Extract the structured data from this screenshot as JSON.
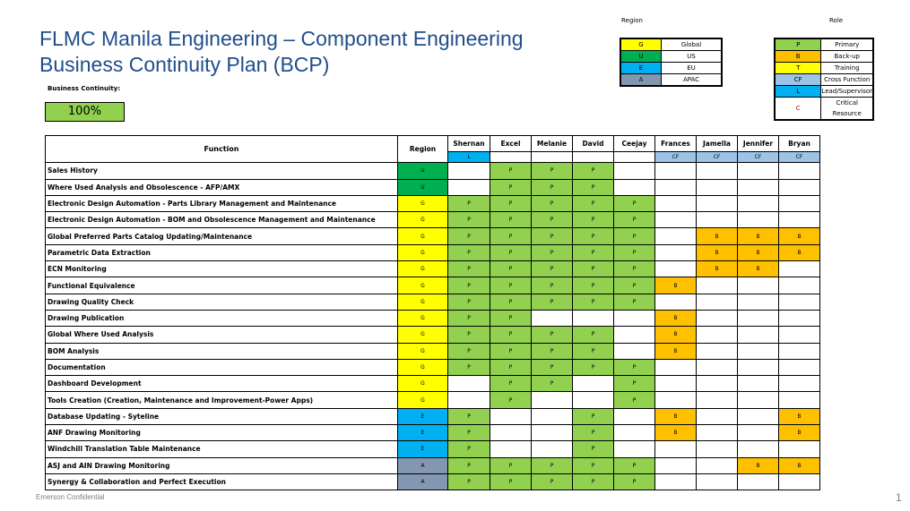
{
  "title": {
    "line1": "FLMC Manila Engineering – Component Engineering",
    "line2": "Business Continuity Plan (BCP)"
  },
  "business_continuity": {
    "label": "Business Continuity:",
    "value": "100%"
  },
  "region_legend": {
    "title": "Region",
    "items": [
      {
        "code": "G",
        "label": "Global",
        "color": "#ffff00"
      },
      {
        "code": "U",
        "label": "US",
        "color": "#00b050"
      },
      {
        "code": "E",
        "label": "EU",
        "color": "#00b0f0"
      },
      {
        "code": "A",
        "label": "APAC",
        "color": "#8497b0"
      }
    ]
  },
  "role_legend": {
    "title": "Role",
    "items": [
      {
        "code": "P",
        "label": "Primary",
        "color": "#92d050"
      },
      {
        "code": "B",
        "label": "Back-up",
        "color": "#ffc000"
      },
      {
        "code": "T",
        "label": "Training",
        "color": "#ffff00"
      },
      {
        "code": "CF",
        "label": "Cross Function",
        "color": "#9dc3e6"
      },
      {
        "code": "L",
        "label": "Lead/Supervisor",
        "color": "#00b0f0"
      },
      {
        "code": "C",
        "label": "Critical Resource",
        "color": "#ffffff"
      }
    ]
  },
  "table": {
    "function_header": "Function",
    "region_header": "Region",
    "people": [
      {
        "name": "Shernan",
        "tag": "L"
      },
      {
        "name": "Excel",
        "tag": ""
      },
      {
        "name": "Melanie",
        "tag": ""
      },
      {
        "name": "David",
        "tag": ""
      },
      {
        "name": "Ceejay",
        "tag": ""
      },
      {
        "name": "Frances",
        "tag": "CF"
      },
      {
        "name": "Jamella",
        "tag": "CF"
      },
      {
        "name": "Jennifer",
        "tag": "CF"
      },
      {
        "name": "Bryan",
        "tag": "CF"
      }
    ],
    "rows": [
      {
        "function": "Sales History",
        "region": "U",
        "roles": [
          "",
          "P",
          "P",
          "P",
          "",
          "",
          "",
          "",
          ""
        ]
      },
      {
        "function": "Where Used Analysis and Obsolescence - AFP/AMX",
        "region": "U",
        "roles": [
          "",
          "P",
          "P",
          "P",
          "",
          "",
          "",
          "",
          ""
        ]
      },
      {
        "function": "Electronic Design Automation  - Parts Library Management and Maintenance",
        "region": "G",
        "roles": [
          "P",
          "P",
          "P",
          "P",
          "P",
          "",
          "",
          "",
          ""
        ]
      },
      {
        "function": "Electronic Design Automation - BOM and Obsolescence Management and Maintenance",
        "region": "G",
        "roles": [
          "P",
          "P",
          "P",
          "P",
          "P",
          "",
          "",
          "",
          ""
        ]
      },
      {
        "function": "Global Preferred Parts Catalog Updating/Maintenance",
        "region": "G",
        "roles": [
          "P",
          "P",
          "P",
          "P",
          "P",
          "",
          "B",
          "B",
          "B"
        ]
      },
      {
        "function": "Parametric Data Extraction",
        "region": "G",
        "roles": [
          "P",
          "P",
          "P",
          "P",
          "P",
          "",
          "B",
          "B",
          "B"
        ]
      },
      {
        "function": "ECN Monitoring",
        "region": "G",
        "roles": [
          "P",
          "P",
          "P",
          "P",
          "P",
          "",
          "B",
          "B",
          ""
        ]
      },
      {
        "function": "Functional Equivalence",
        "region": "G",
        "roles": [
          "P",
          "P",
          "P",
          "P",
          "P",
          "B",
          "",
          "",
          ""
        ]
      },
      {
        "function": "Drawing Quality Check",
        "region": "G",
        "roles": [
          "P",
          "P",
          "P",
          "P",
          "P",
          "",
          "",
          "",
          ""
        ]
      },
      {
        "function": "Drawing Publication",
        "region": "G",
        "roles": [
          "P",
          "P",
          "",
          "",
          "",
          "B",
          "",
          "",
          ""
        ]
      },
      {
        "function": "Global Where Used Analysis",
        "region": "G",
        "roles": [
          "P",
          "P",
          "P",
          "P",
          "",
          "B",
          "",
          "",
          ""
        ]
      },
      {
        "function": "BOM Analysis",
        "region": "G",
        "roles": [
          "P",
          "P",
          "P",
          "P",
          "",
          "B",
          "",
          "",
          ""
        ]
      },
      {
        "function": "Documentation",
        "region": "G",
        "roles": [
          "P",
          "P",
          "P",
          "P",
          "P",
          "",
          "",
          "",
          ""
        ]
      },
      {
        "function": "Dashboard Development",
        "region": "G",
        "roles": [
          "",
          "P",
          "P",
          "",
          "P",
          "",
          "",
          "",
          ""
        ]
      },
      {
        "function": "Tools Creation (Creation, Maintenance and Improvement-Power Apps)",
        "region": "G",
        "roles": [
          "",
          "P",
          "",
          "",
          "P",
          "",
          "",
          "",
          ""
        ]
      },
      {
        "function": "Database Updating - Syteline",
        "region": "E",
        "roles": [
          "P",
          "",
          "",
          "P",
          "",
          "B",
          "",
          "",
          "B"
        ]
      },
      {
        "function": "ANF Drawing Monitoring",
        "region": "E",
        "roles": [
          "P",
          "",
          "",
          "P",
          "",
          "B",
          "",
          "",
          "B"
        ]
      },
      {
        "function": "Windchill Translation Table Maintenance",
        "region": "E",
        "roles": [
          "P",
          "",
          "",
          "P",
          "",
          "",
          "",
          "",
          ""
        ]
      },
      {
        "function": "ASJ and AIN Drawing Monitoring",
        "region": "A",
        "roles": [
          "P",
          "P",
          "P",
          "P",
          "P",
          "",
          "",
          "B",
          "B"
        ]
      },
      {
        "function": "Synergy & Collaboration and Perfect Execution",
        "region": "A",
        "roles": [
          "P",
          "P",
          "P",
          "P",
          "P",
          "",
          "",
          "",
          ""
        ]
      }
    ]
  },
  "footer": {
    "confidential": "Emerson Confidential",
    "page_number": "1"
  }
}
